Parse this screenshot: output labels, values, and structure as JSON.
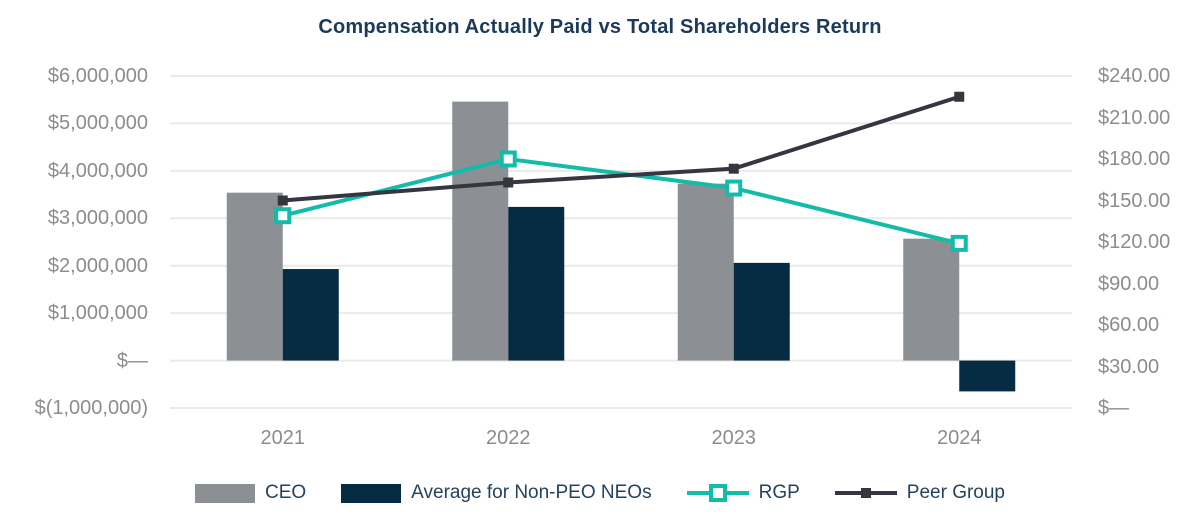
{
  "title": "Compensation Actually Paid vs Total Shareholders Return",
  "colors": {
    "title_text": "#1B3A5A",
    "legend_text": "#24425F",
    "axis_text": "#8A8D90",
    "gridline": "#EAEAEA",
    "ceo_bar": "#8C8F94",
    "neo_bar": "#062C44",
    "rgp_teal": "#12BCA8",
    "peer_dark": "#34373F"
  },
  "chart_data": {
    "type": "bar",
    "subtype": "combo-bar-line-dual-axis",
    "grid": "horizontal",
    "legend_position": "bottom",
    "categories": [
      "2021",
      "2022",
      "2023",
      "2024"
    ],
    "bar_series": [
      {
        "name": "CEO",
        "axis": "left",
        "color": "#8C8F94",
        "values": [
          3540000,
          5460000,
          3730000,
          2570000
        ]
      },
      {
        "name": "Average for Non-PEO NEOs",
        "axis": "left",
        "color": "#062C44",
        "values": [
          1930000,
          3240000,
          2060000,
          -650000
        ]
      }
    ],
    "line_series": [
      {
        "name": "RGP",
        "axis": "right",
        "color": "#12BCA8",
        "marker": "open-square",
        "values": [
          139,
          180,
          159,
          119
        ]
      },
      {
        "name": "Peer Group",
        "axis": "right",
        "color": "#34373F",
        "marker": "filled-square",
        "values": [
          150,
          163,
          173,
          225
        ]
      }
    ],
    "left_axis": {
      "min": -1000000,
      "max": 6000000,
      "ticks": [
        "$6,000,000",
        "$5,000,000",
        "$4,000,000",
        "$3,000,000",
        "$2,000,000",
        "$1,000,000",
        "$—",
        "$(1,000,000)"
      ]
    },
    "right_axis": {
      "min": 0,
      "max": 240,
      "ticks": [
        "$240.00",
        "$210.00",
        "$180.00",
        "$150.00",
        "$120.00",
        "$90.00",
        "$60.00",
        "$30.00",
        "$—"
      ]
    }
  }
}
